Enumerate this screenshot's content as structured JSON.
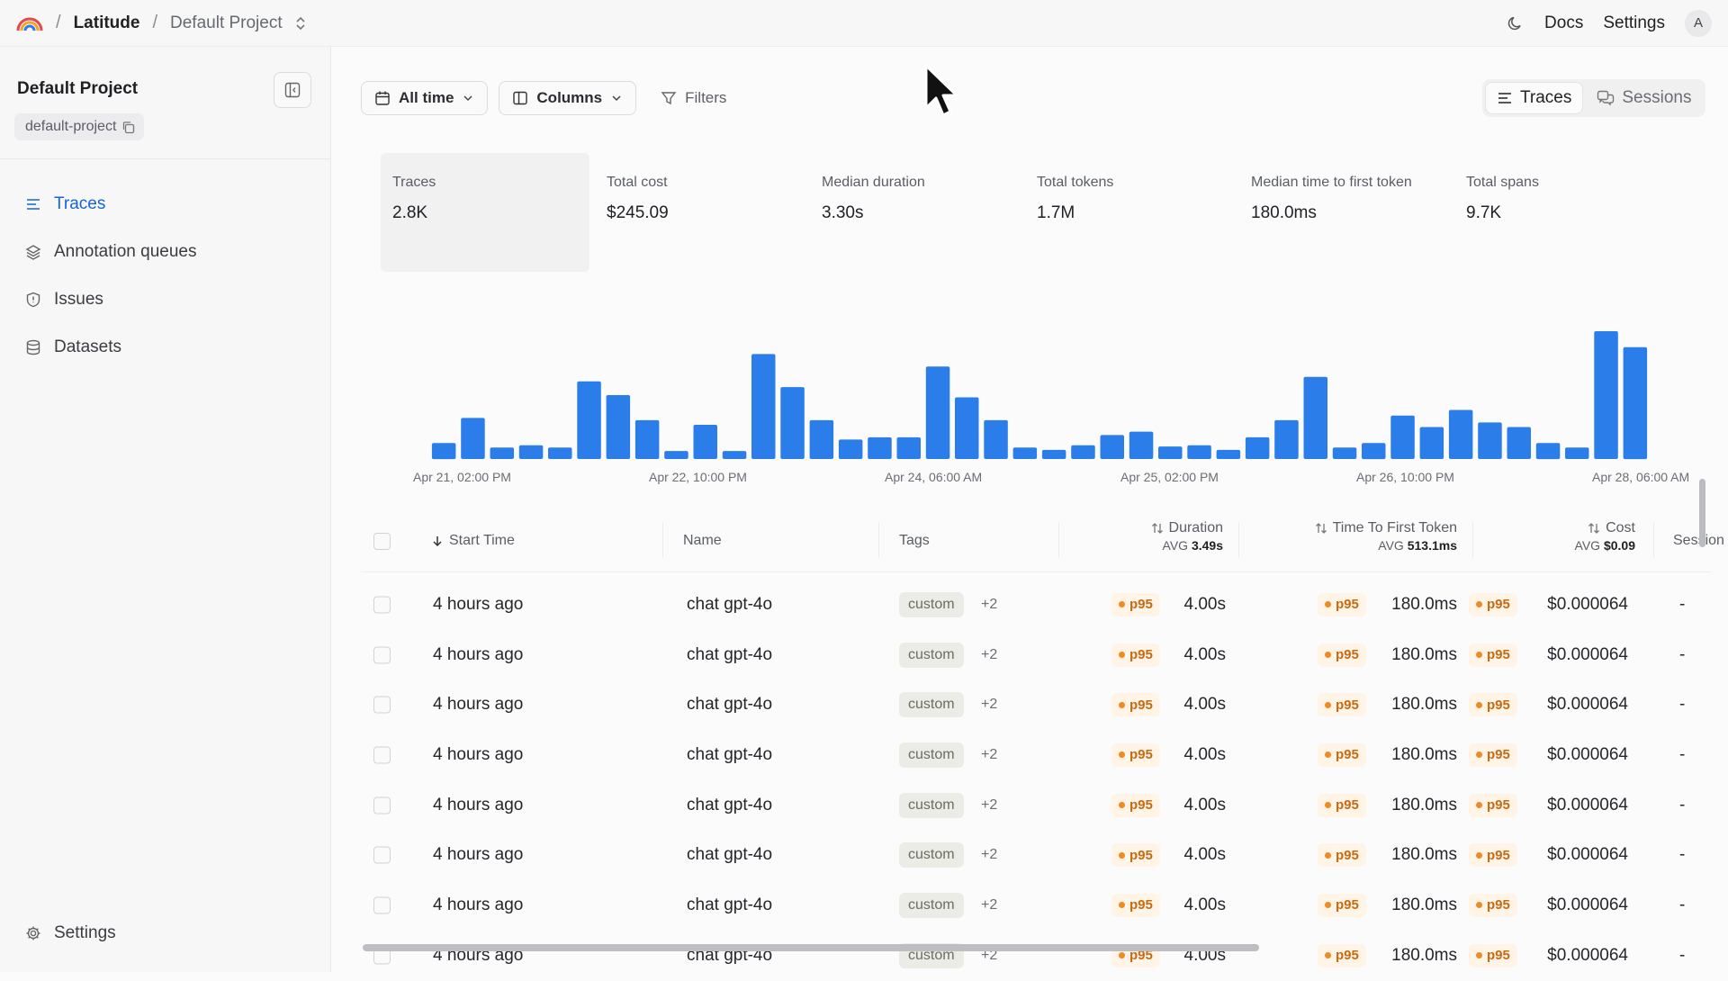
{
  "topbar": {
    "logo_icon": "latitude-logo-icon",
    "org": "Latitude",
    "project": "Default Project",
    "docs": "Docs",
    "settings": "Settings",
    "avatar_initial": "A",
    "separator": "/"
  },
  "sidebar": {
    "project_title": "Default Project",
    "project_slug": "default-project",
    "items": [
      {
        "label": "Traces",
        "icon": "list-icon",
        "active": true
      },
      {
        "label": "Annotation queues",
        "icon": "layers-icon",
        "active": false
      },
      {
        "label": "Issues",
        "icon": "shield-icon",
        "active": false
      },
      {
        "label": "Datasets",
        "icon": "database-icon",
        "active": false
      }
    ],
    "settings_label": "Settings"
  },
  "toolbar": {
    "time_range": "All time",
    "columns": "Columns",
    "filters": "Filters",
    "view_traces": "Traces",
    "view_sessions": "Sessions"
  },
  "stats": [
    {
      "label": "Traces",
      "value": "2.8K"
    },
    {
      "label": "Total cost",
      "value": "$245.09"
    },
    {
      "label": "Median duration",
      "value": "3.30s"
    },
    {
      "label": "Total tokens",
      "value": "1.7M"
    },
    {
      "label": "Median time to first token",
      "value": "180.0ms"
    },
    {
      "label": "Total spans",
      "value": "9.7K"
    }
  ],
  "chart_data": {
    "type": "bar",
    "x_tick_labels": [
      "Apr 21, 02:00 PM",
      "Apr 22, 10:00 PM",
      "Apr 24, 06:00 AM",
      "Apr 25, 02:00 PM",
      "Apr 26, 10:00 PM",
      "Apr 28, 06:00 AM"
    ],
    "values": [
      14,
      36,
      10,
      12,
      10,
      68,
      56,
      34,
      7,
      30,
      7,
      92,
      63,
      34,
      17,
      19,
      19,
      81,
      54,
      34,
      10,
      8,
      12,
      21,
      24,
      11,
      12,
      8,
      19,
      34,
      72,
      10,
      14,
      38,
      28,
      43,
      32,
      28,
      14,
      10,
      112,
      98
    ],
    "color": "#2b7de9",
    "grid": false
  },
  "table": {
    "columns": {
      "start_time": "Start Time",
      "name": "Name",
      "tags": "Tags",
      "duration": "Duration",
      "duration_avg_label": "AVG",
      "duration_avg": "3.49s",
      "ttft": "Time To First Token",
      "ttft_avg_label": "AVG",
      "ttft_avg": "513.1ms",
      "cost": "Cost",
      "cost_avg_label": "AVG",
      "cost_avg": "$0.09",
      "session": "Session"
    },
    "rows": [
      {
        "start": "4 hours ago",
        "name": "chat gpt-4o",
        "tag": "custom",
        "more": "+2",
        "p": "p95",
        "duration": "4.00s",
        "ttft": "180.0ms",
        "cost": "$0.000064",
        "session": "-"
      },
      {
        "start": "4 hours ago",
        "name": "chat gpt-4o",
        "tag": "custom",
        "more": "+2",
        "p": "p95",
        "duration": "4.00s",
        "ttft": "180.0ms",
        "cost": "$0.000064",
        "session": "-"
      },
      {
        "start": "4 hours ago",
        "name": "chat gpt-4o",
        "tag": "custom",
        "more": "+2",
        "p": "p95",
        "duration": "4.00s",
        "ttft": "180.0ms",
        "cost": "$0.000064",
        "session": "-"
      },
      {
        "start": "4 hours ago",
        "name": "chat gpt-4o",
        "tag": "custom",
        "more": "+2",
        "p": "p95",
        "duration": "4.00s",
        "ttft": "180.0ms",
        "cost": "$0.000064",
        "session": "-"
      },
      {
        "start": "4 hours ago",
        "name": "chat gpt-4o",
        "tag": "custom",
        "more": "+2",
        "p": "p95",
        "duration": "4.00s",
        "ttft": "180.0ms",
        "cost": "$0.000064",
        "session": "-"
      },
      {
        "start": "4 hours ago",
        "name": "chat gpt-4o",
        "tag": "custom",
        "more": "+2",
        "p": "p95",
        "duration": "4.00s",
        "ttft": "180.0ms",
        "cost": "$0.000064",
        "session": "-"
      },
      {
        "start": "4 hours ago",
        "name": "chat gpt-4o",
        "tag": "custom",
        "more": "+2",
        "p": "p95",
        "duration": "4.00s",
        "ttft": "180.0ms",
        "cost": "$0.000064",
        "session": "-"
      },
      {
        "start": "4 hours ago",
        "name": "chat gpt-4o",
        "tag": "custom",
        "more": "+2",
        "p": "p95",
        "duration": "4.00s",
        "ttft": "180.0ms",
        "cost": "$0.000064",
        "session": "-"
      }
    ]
  }
}
